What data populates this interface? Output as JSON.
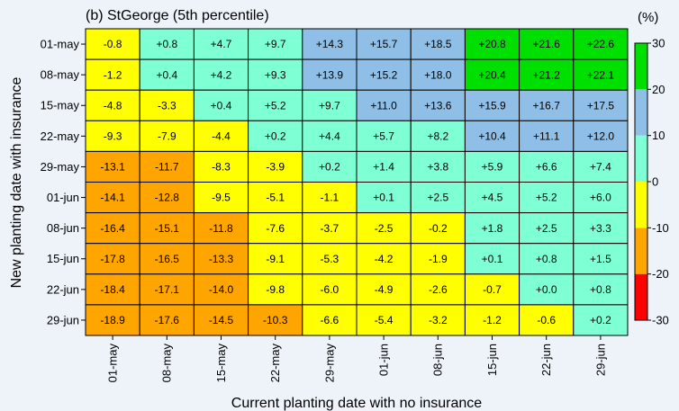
{
  "chart_data": {
    "type": "heatmap",
    "title": "(b) StGeorge (5th percentile)",
    "unit_label": "(%)",
    "x_label": "Current planting date with no insurance",
    "y_label": "New planting date with insurance",
    "x_categories": [
      "01-may",
      "08-may",
      "15-may",
      "22-may",
      "29-may",
      "01-jun",
      "08-jun",
      "15-jun",
      "22-jun",
      "29-jun"
    ],
    "y_categories": [
      "01-may",
      "08-may",
      "15-may",
      "22-may",
      "29-may",
      "01-jun",
      "08-jun",
      "15-jun",
      "22-jun",
      "29-jun"
    ],
    "values": [
      [
        -0.8,
        0.8,
        4.7,
        9.7,
        14.3,
        15.7,
        18.5,
        20.8,
        21.6,
        22.6
      ],
      [
        -1.2,
        0.4,
        4.2,
        9.3,
        13.9,
        15.2,
        18.0,
        20.4,
        21.2,
        22.1
      ],
      [
        -4.8,
        -3.3,
        0.4,
        5.2,
        9.7,
        11.0,
        13.6,
        15.9,
        16.7,
        17.5
      ],
      [
        -9.3,
        -7.9,
        -4.4,
        0.2,
        4.4,
        5.7,
        8.2,
        10.4,
        11.1,
        12.0
      ],
      [
        -13.1,
        -11.7,
        -8.3,
        -3.9,
        0.2,
        1.4,
        3.8,
        5.9,
        6.6,
        7.4
      ],
      [
        -14.1,
        -12.8,
        -9.5,
        -5.1,
        -1.1,
        0.1,
        2.5,
        4.5,
        5.2,
        6.0
      ],
      [
        -16.4,
        -15.1,
        -11.8,
        -7.6,
        -3.7,
        -2.5,
        -0.2,
        1.8,
        2.5,
        3.3
      ],
      [
        -17.8,
        -16.5,
        -13.3,
        -9.1,
        -5.3,
        -4.2,
        -1.9,
        0.1,
        0.8,
        1.5
      ],
      [
        -18.4,
        -17.1,
        -14.0,
        -9.8,
        -6.0,
        -4.9,
        -2.6,
        -0.7,
        0.0,
        0.8
      ],
      [
        -18.9,
        -17.6,
        -14.5,
        -10.3,
        -6.6,
        -5.4,
        -3.2,
        -1.2,
        -0.6,
        0.2
      ]
    ],
    "value_labels": [
      [
        "-0.8",
        "+0.8",
        "+4.7",
        "+9.7",
        "+14.3",
        "+15.7",
        "+18.5",
        "+20.8",
        "+21.6",
        "+22.6"
      ],
      [
        "-1.2",
        "+0.4",
        "+4.2",
        "+9.3",
        "+13.9",
        "+15.2",
        "+18.0",
        "+20.4",
        "+21.2",
        "+22.1"
      ],
      [
        "-4.8",
        "-3.3",
        "+0.4",
        "+5.2",
        "+9.7",
        "+11.0",
        "+13.6",
        "+15.9",
        "+16.7",
        "+17.5"
      ],
      [
        "-9.3",
        "-7.9",
        "-4.4",
        "+0.2",
        "+4.4",
        "+5.7",
        "+8.2",
        "+10.4",
        "+11.1",
        "+12.0"
      ],
      [
        "-13.1",
        "-11.7",
        "-8.3",
        "-3.9",
        "+0.2",
        "+1.4",
        "+3.8",
        "+5.9",
        "+6.6",
        "+7.4"
      ],
      [
        "-14.1",
        "-12.8",
        "-9.5",
        "-5.1",
        "-1.1",
        "+0.1",
        "+2.5",
        "+4.5",
        "+5.2",
        "+6.0"
      ],
      [
        "-16.4",
        "-15.1",
        "-11.8",
        "-7.6",
        "-3.7",
        "-2.5",
        "-0.2",
        "+1.8",
        "+2.5",
        "+3.3"
      ],
      [
        "-17.8",
        "-16.5",
        "-13.3",
        "-9.1",
        "-5.3",
        "-4.2",
        "-1.9",
        "+0.1",
        "+0.8",
        "+1.5"
      ],
      [
        "-18.4",
        "-17.1",
        "-14.0",
        "-9.8",
        "-6.0",
        "-4.9",
        "-2.6",
        "-0.7",
        "+0.0",
        "+0.8"
      ],
      [
        "-18.9",
        "-17.6",
        "-14.5",
        "-10.3",
        "-6.6",
        "-5.4",
        "-3.2",
        "-1.2",
        "-0.6",
        "+0.2"
      ]
    ],
    "zlim": [
      -30,
      30
    ],
    "zticks": [
      -30,
      -20,
      -10,
      0,
      10,
      20,
      30
    ],
    "colors": [
      "#ff0000",
      "#ffa500",
      "#ffff00",
      "#7fffd4",
      "#8fbfe6",
      "#00e000"
    ]
  }
}
